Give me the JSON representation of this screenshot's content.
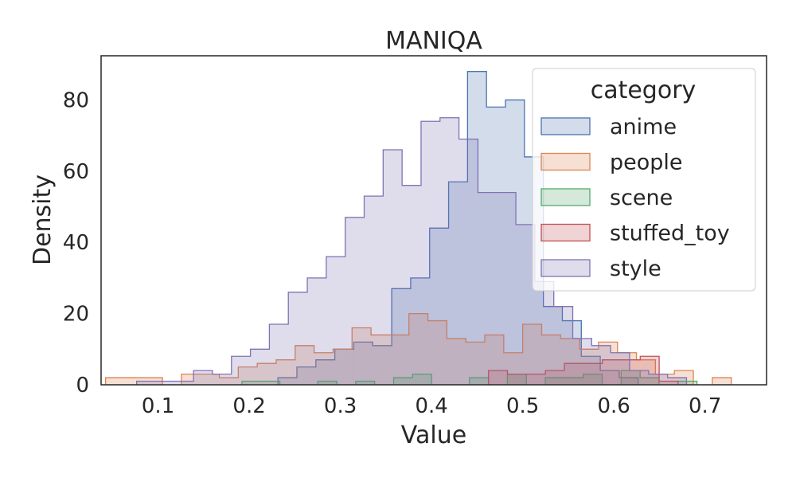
{
  "chart_data": {
    "type": "histogram",
    "title": "MANIQA",
    "xlabel": "Value",
    "ylabel": "Density",
    "xlim": [
      0.0375,
      0.7675
    ],
    "ylim": [
      0,
      92.4
    ],
    "xticks": [
      0.1,
      0.2,
      0.3,
      0.4,
      0.5,
      0.6,
      0.7
    ],
    "xtick_labels": [
      "0.1",
      "0.2",
      "0.3",
      "0.4",
      "0.5",
      "0.6",
      "0.7"
    ],
    "yticks": [
      0,
      20,
      40,
      60,
      80
    ],
    "ytick_labels": [
      "0",
      "20",
      "40",
      "60",
      "80"
    ],
    "bin_width": 0.0208,
    "grid": false,
    "legend": {
      "title": "category",
      "position": "top-right"
    },
    "series": [
      {
        "name": "anime",
        "color": "#4c72b0",
        "bins": [
          [
            0.2315,
            0.2523,
            2
          ],
          [
            0.2523,
            0.2731,
            5
          ],
          [
            0.2731,
            0.2939,
            7
          ],
          [
            0.2939,
            0.3147,
            10
          ],
          [
            0.3147,
            0.3355,
            12
          ],
          [
            0.3355,
            0.3563,
            11
          ],
          [
            0.3563,
            0.3771,
            27
          ],
          [
            0.3771,
            0.3979,
            30
          ],
          [
            0.3979,
            0.4187,
            44
          ],
          [
            0.4187,
            0.4395,
            57
          ],
          [
            0.4395,
            0.4603,
            88
          ],
          [
            0.4603,
            0.4811,
            78
          ],
          [
            0.4811,
            0.5019,
            80
          ],
          [
            0.5019,
            0.5227,
            64
          ],
          [
            0.5227,
            0.5435,
            22
          ],
          [
            0.5435,
            0.5643,
            18
          ],
          [
            0.5643,
            0.5851,
            8
          ],
          [
            0.5851,
            0.6059,
            4
          ],
          [
            0.6059,
            0.6267,
            2
          ]
        ]
      },
      {
        "name": "people",
        "color": "#dd8452",
        "bins": [
          [
            0.0424,
            0.0632,
            2
          ],
          [
            0.0632,
            0.084,
            2
          ],
          [
            0.084,
            0.1048,
            2
          ],
          [
            0.1256,
            0.1464,
            3
          ],
          [
            0.1464,
            0.1672,
            3
          ],
          [
            0.1672,
            0.188,
            2
          ],
          [
            0.188,
            0.2088,
            5
          ],
          [
            0.2088,
            0.2296,
            6
          ],
          [
            0.2296,
            0.2504,
            7
          ],
          [
            0.2504,
            0.2712,
            11
          ],
          [
            0.2712,
            0.292,
            9
          ],
          [
            0.292,
            0.3128,
            10
          ],
          [
            0.3128,
            0.3336,
            16
          ],
          [
            0.3336,
            0.3544,
            14
          ],
          [
            0.3544,
            0.3752,
            14
          ],
          [
            0.3752,
            0.396,
            20
          ],
          [
            0.396,
            0.4168,
            18
          ],
          [
            0.4168,
            0.4376,
            13
          ],
          [
            0.4376,
            0.4584,
            12
          ],
          [
            0.4584,
            0.4792,
            14
          ],
          [
            0.4792,
            0.5,
            9
          ],
          [
            0.5,
            0.5208,
            17
          ],
          [
            0.5208,
            0.5416,
            14
          ],
          [
            0.5416,
            0.5624,
            13
          ],
          [
            0.5624,
            0.5832,
            10
          ],
          [
            0.5832,
            0.604,
            12
          ],
          [
            0.604,
            0.6248,
            9
          ],
          [
            0.6248,
            0.6456,
            7
          ],
          [
            0.6456,
            0.6664,
            3
          ],
          [
            0.6664,
            0.6872,
            4
          ],
          [
            0.708,
            0.7288,
            2
          ]
        ]
      },
      {
        "name": "scene",
        "color": "#55a868",
        "bins": [
          [
            0.192,
            0.2128,
            1
          ],
          [
            0.2128,
            0.2336,
            1
          ],
          [
            0.2752,
            0.296,
            1
          ],
          [
            0.3168,
            0.3376,
            1
          ],
          [
            0.3584,
            0.3792,
            2
          ],
          [
            0.3792,
            0.4,
            3
          ],
          [
            0.4416,
            0.4624,
            2
          ],
          [
            0.4832,
            0.504,
            3
          ],
          [
            0.5248,
            0.5456,
            2
          ],
          [
            0.5456,
            0.5664,
            2
          ],
          [
            0.5664,
            0.5872,
            3
          ],
          [
            0.608,
            0.6288,
            4
          ],
          [
            0.6288,
            0.6496,
            2
          ],
          [
            0.6704,
            0.6912,
            1
          ]
        ]
      },
      {
        "name": "stuffed_toy",
        "color": "#c44e52",
        "bins": [
          [
            0.4625,
            0.4833,
            4
          ],
          [
            0.4833,
            0.5041,
            3
          ],
          [
            0.5041,
            0.5249,
            3
          ],
          [
            0.5249,
            0.5457,
            4
          ],
          [
            0.5457,
            0.5665,
            6
          ],
          [
            0.5665,
            0.5873,
            6
          ],
          [
            0.5873,
            0.6081,
            7
          ],
          [
            0.6081,
            0.6289,
            7
          ],
          [
            0.6289,
            0.6497,
            8
          ],
          [
            0.6497,
            0.6705,
            1
          ]
        ]
      },
      {
        "name": "style",
        "color": "#8172b3",
        "bins": [
          [
            0.0765,
            0.0973,
            1
          ],
          [
            0.0973,
            0.1181,
            1
          ],
          [
            0.1181,
            0.1389,
            1
          ],
          [
            0.1389,
            0.1597,
            4
          ],
          [
            0.1597,
            0.1805,
            3
          ],
          [
            0.1805,
            0.2013,
            8
          ],
          [
            0.2013,
            0.2221,
            10
          ],
          [
            0.2221,
            0.2429,
            17
          ],
          [
            0.2429,
            0.2637,
            26
          ],
          [
            0.2637,
            0.2845,
            30
          ],
          [
            0.2845,
            0.3053,
            36
          ],
          [
            0.3053,
            0.3261,
            47
          ],
          [
            0.3261,
            0.3469,
            53
          ],
          [
            0.3469,
            0.3677,
            66
          ],
          [
            0.3677,
            0.3885,
            56
          ],
          [
            0.3885,
            0.4093,
            74
          ],
          [
            0.4093,
            0.4301,
            75
          ],
          [
            0.4301,
            0.4509,
            69
          ],
          [
            0.4509,
            0.4717,
            54
          ],
          [
            0.4717,
            0.4925,
            54
          ],
          [
            0.4925,
            0.5133,
            45
          ],
          [
            0.5133,
            0.5341,
            29
          ],
          [
            0.5341,
            0.5549,
            22
          ],
          [
            0.5549,
            0.5757,
            13
          ],
          [
            0.5757,
            0.5965,
            11
          ],
          [
            0.5965,
            0.6173,
            9
          ],
          [
            0.6173,
            0.6381,
            4
          ],
          [
            0.6381,
            0.6589,
            3
          ],
          [
            0.6589,
            0.6797,
            2
          ]
        ]
      }
    ]
  }
}
